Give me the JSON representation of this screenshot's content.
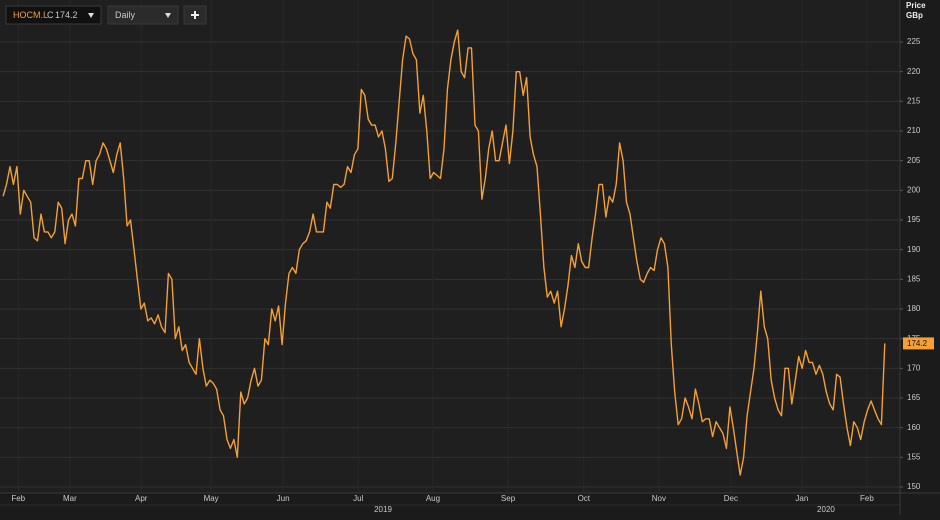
{
  "toolbar": {
    "symbol": "HOCM.L",
    "close_prefix": "C",
    "interval": "Daily"
  },
  "chart_data": {
    "type": "line",
    "y_label": "Price",
    "y_unit": "GBp",
    "color": "#f5a033",
    "values": [
      199,
      201,
      204,
      201,
      204,
      196,
      200,
      199,
      198,
      192,
      191.5,
      196,
      193,
      193,
      192,
      193,
      198,
      197,
      191,
      195,
      196,
      194,
      202,
      202,
      205,
      205,
      201,
      205,
      206,
      208,
      207,
      205,
      203,
      206,
      208,
      202,
      194,
      195,
      190,
      185,
      180,
      181,
      178,
      178.5,
      177.5,
      179,
      177,
      176,
      186,
      185,
      175,
      177,
      173,
      174,
      171,
      170,
      169,
      175,
      170,
      167,
      168,
      167.5,
      166.5,
      163,
      162,
      158,
      156.5,
      158,
      155,
      166,
      164,
      165,
      168,
      170,
      167,
      168,
      175,
      174,
      180,
      178,
      180.5,
      174,
      181,
      186,
      187,
      186,
      190,
      191,
      191.5,
      193,
      196,
      193,
      193,
      193,
      198,
      197,
      201,
      201,
      200.5,
      201,
      204,
      203,
      206,
      207,
      217,
      216,
      212,
      211,
      211,
      209,
      210,
      207,
      201.5,
      202,
      208,
      215,
      222,
      226,
      225.5,
      223,
      222,
      213,
      216,
      210,
      202,
      203,
      202.5,
      202,
      207,
      217,
      222,
      225,
      227,
      220,
      219,
      224,
      224,
      211,
      210,
      198.5,
      202,
      207,
      210,
      205,
      205,
      208,
      211,
      204.5,
      210,
      220,
      220,
      216,
      219,
      209,
      206,
      204,
      196,
      187,
      182,
      183,
      181,
      183,
      177,
      180,
      184,
      189,
      187,
      191,
      188,
      187,
      187,
      192,
      196,
      201,
      201,
      195.5,
      199,
      198,
      201,
      208,
      205,
      198,
      196,
      192,
      188,
      185,
      184.5,
      186,
      187,
      186.5,
      190,
      192,
      191,
      187,
      174,
      166,
      160.5,
      161.5,
      165,
      163.5,
      161.5,
      166.5,
      164,
      161,
      161.5,
      161.5,
      158.5,
      161,
      160,
      159,
      156.5,
      163.5,
      160,
      156,
      152,
      155,
      162,
      166,
      170,
      176,
      183,
      177,
      175,
      168,
      165,
      163,
      162,
      170,
      170,
      164,
      168,
      172,
      170,
      173,
      171,
      171,
      169,
      170.5,
      169,
      166,
      164,
      163,
      169,
      168.5,
      164,
      160,
      157,
      161,
      160,
      158,
      161,
      163,
      164.5,
      163,
      161.5,
      160.5,
      174.2
    ],
    "xlim": [
      -0.9,
      260.4
    ],
    "ylim": [
      148.65,
      232.08
    ],
    "yticks": [
      150,
      155,
      160,
      165,
      170,
      175,
      180,
      185,
      190,
      195,
      200,
      205,
      210,
      215,
      220,
      225
    ],
    "xticks": [
      {
        "value": 4.4,
        "label": "Feb"
      },
      {
        "value": 19.4,
        "label": "Mar"
      },
      {
        "value": 40.1,
        "label": "Apr"
      },
      {
        "value": 60.4,
        "label": "May"
      },
      {
        "value": 81.3,
        "label": "Jun"
      },
      {
        "value": 103.1,
        "label": "Jul"
      },
      {
        "value": 124.8,
        "label": "Aug"
      },
      {
        "value": 146.6,
        "label": "Sep"
      },
      {
        "value": 168.6,
        "label": "Oct"
      },
      {
        "value": 190.4,
        "label": "Nov"
      },
      {
        "value": 211.3,
        "label": "Dec"
      },
      {
        "value": 231.9,
        "label": "Jan"
      },
      {
        "value": 250.8,
        "label": "Feb"
      }
    ],
    "year_labels": [
      {
        "value": 110.3,
        "label": "2019"
      },
      {
        "value": 238.9,
        "label": "2020"
      }
    ],
    "grid": true
  }
}
